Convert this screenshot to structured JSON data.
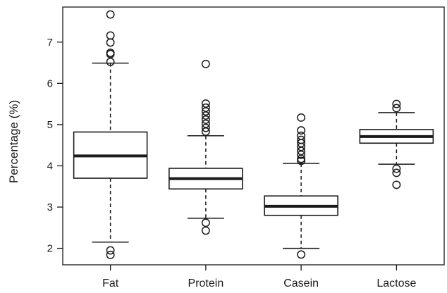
{
  "chart_data": {
    "type": "boxplot",
    "title": "",
    "xlabel": "",
    "ylabel": "Percentage (%)",
    "ylim": [
      1.6,
      7.85
    ],
    "yticks": [
      2,
      3,
      4,
      5,
      6,
      7
    ],
    "categories": [
      "Fat",
      "Protein",
      "Casein",
      "Lactose"
    ],
    "boxes": [
      {
        "name": "Fat",
        "whisker_low": 2.15,
        "q1": 3.7,
        "median": 4.24,
        "q3": 4.82,
        "whisker_high": 6.49,
        "outliers": [
          7.67,
          7.16,
          6.99,
          6.74,
          6.71,
          6.52,
          1.95,
          1.84
        ]
      },
      {
        "name": "Protein",
        "whisker_low": 2.73,
        "q1": 3.44,
        "median": 3.69,
        "q3": 3.94,
        "whisker_high": 4.73,
        "outliers": [
          6.47,
          5.51,
          5.41,
          5.32,
          5.22,
          5.12,
          5.02,
          4.92,
          4.83,
          2.62,
          2.43
        ]
      },
      {
        "name": "Casein",
        "whisker_low": 2.0,
        "q1": 2.8,
        "median": 3.02,
        "q3": 3.27,
        "whisker_high": 4.06,
        "outliers": [
          5.17,
          4.86,
          4.73,
          4.63,
          4.55,
          4.46,
          4.36,
          4.27,
          4.17,
          4.12,
          1.85
        ]
      },
      {
        "name": "Lactose",
        "whisker_low": 4.04,
        "q1": 4.55,
        "median": 4.71,
        "q3": 4.88,
        "whisker_high": 5.29,
        "outliers": [
          5.5,
          5.4,
          3.93,
          3.83,
          3.54
        ]
      }
    ]
  }
}
